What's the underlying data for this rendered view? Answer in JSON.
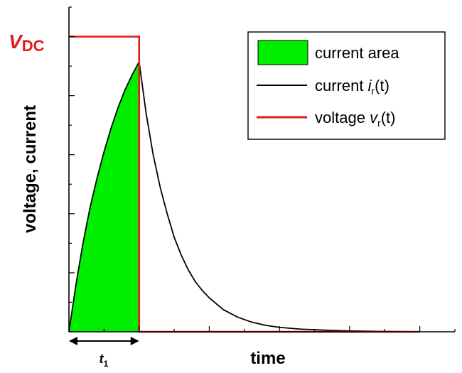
{
  "chart_data": {
    "type": "area",
    "xlabel": "time",
    "ylabel": "voltage, current",
    "xlim": [
      0,
      5.5
    ],
    "ylim": [
      0,
      1.1
    ],
    "series": [
      {
        "name": "current i_r(t)",
        "color": "#000000",
        "x": [
          0,
          0.1,
          0.2,
          0.3,
          0.4,
          0.5,
          0.6,
          0.7,
          0.8,
          0.9,
          1.0,
          1.1,
          1.2,
          1.3,
          1.4,
          1.5,
          1.6,
          1.7,
          1.8,
          1.9,
          2.0,
          2.2,
          2.4,
          2.6,
          2.8,
          3.0,
          3.3,
          3.6,
          4.0,
          4.5,
          5.0
        ],
        "values": [
          0,
          0.16,
          0.3,
          0.42,
          0.52,
          0.61,
          0.69,
          0.76,
          0.82,
          0.87,
          0.915,
          0.74,
          0.6,
          0.49,
          0.4,
          0.32,
          0.26,
          0.21,
          0.17,
          0.14,
          0.115,
          0.075,
          0.05,
          0.033,
          0.022,
          0.015,
          0.009,
          0.006,
          0.003,
          0.001,
          0.0
        ]
      },
      {
        "name": "voltage v_r(t)",
        "color": "#e31a1c",
        "x": [
          0,
          1.0,
          1.0,
          5.0
        ],
        "values": [
          1.0,
          1.0,
          0,
          0
        ]
      }
    ],
    "area": {
      "name": "current area",
      "color": "#00ee00",
      "x_range": [
        0,
        1.0
      ]
    },
    "annotations": {
      "vdc": {
        "main": "V",
        "sub": "DC",
        "color": "#e31a1c"
      },
      "t1": {
        "main": "t",
        "sub": "1"
      }
    },
    "legend": {
      "position": "top-right",
      "items": [
        {
          "kind": "area",
          "prefix": "current area",
          "ital": "",
          "sub": "",
          "suffix": "",
          "color": "#00ee00"
        },
        {
          "kind": "line",
          "prefix": "current ",
          "ital": "i",
          "sub": "r",
          "suffix": "(t)",
          "color": "#000000"
        },
        {
          "kind": "line",
          "prefix": "voltage ",
          "ital": "v",
          "sub": "r",
          "suffix": "(t)",
          "color": "#e31a1c"
        }
      ]
    }
  }
}
